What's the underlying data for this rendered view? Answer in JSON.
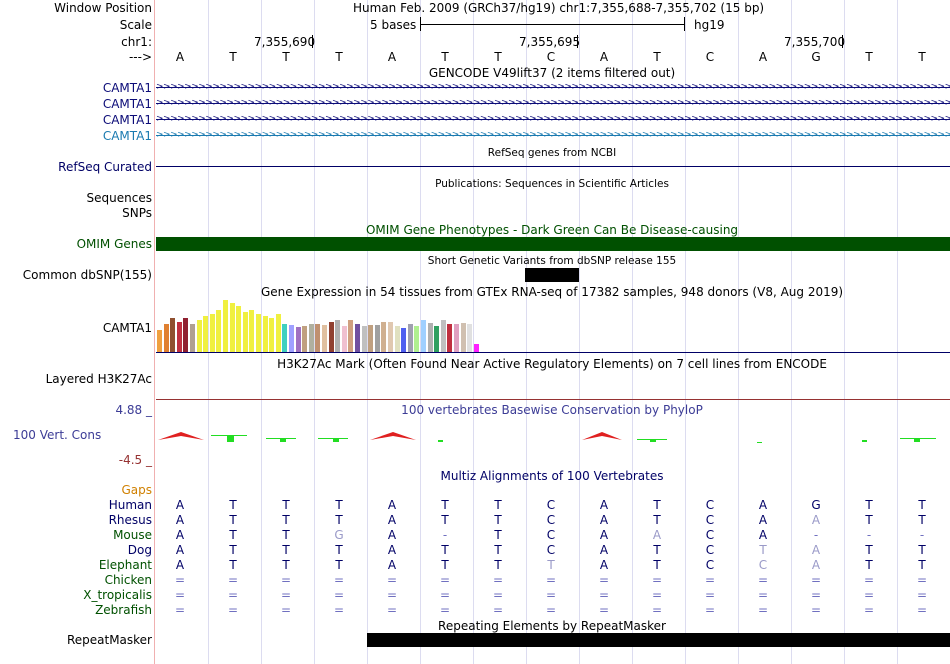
{
  "colors": {
    "navy": "#000066",
    "gene_blue": "#0c0c78",
    "gene_teal": "#1a7ab0",
    "omim_green": "#005000",
    "phylop_blue": "#3c3c96",
    "neg_red": "#963232",
    "red_peak": "#e02020",
    "lime": "#22dd22",
    "gaps_orange": "#d08000",
    "grey": "#7070c0",
    "mismatch": "#9a9ac8"
  },
  "header": {
    "window_label": "Window Position",
    "window_value": "Human Feb. 2009 (GRCh37/hg19)   chr1:7,355,688-7,355,702 (15 bp)",
    "scale_label": "Scale",
    "scale_value": "5 bases",
    "scale_db": "hg19",
    "chr_label": "chr1:",
    "arrow_label": "--->",
    "ticks": [
      "7,355,690",
      "7,355,695",
      "7,355,700"
    ]
  },
  "bases": [
    "A",
    "T",
    "T",
    "T",
    "A",
    "T",
    "T",
    "C",
    "A",
    "T",
    "C",
    "A",
    "G",
    "T",
    "T"
  ],
  "tracks": {
    "gencode_title": "GENCODE V49lift37 (2 items filtered out)",
    "gencode_items": [
      "CAMTA1",
      "CAMTA1",
      "CAMTA1",
      "CAMTA1"
    ],
    "refseq_label": "RefSeq Curated",
    "refseq_title": "RefSeq genes from NCBI",
    "pubs_title": "Publications: Sequences in Scientific Articles",
    "sequences_label": "Sequences",
    "snps_label": "SNPs",
    "omim_title": "OMIM Gene Phenotypes - Dark Green Can Be Disease-causing",
    "omim_label": "OMIM Genes",
    "dbsnp_title": "Short Genetic Variants from dbSNP release 155",
    "dbsnp_label": "Common dbSNP(155)",
    "gtex_title": "Gene Expression in 54 tissues from GTEx RNA-seq of 17382 samples, 948 donors (V8, Aug 2019)",
    "gtex_label": "CAMTA1",
    "h3k_title": "H3K27Ac Mark (Often Found Near Active Regulatory Elements) on 7 cell lines from ENCODE",
    "h3k_label": "Layered H3K27Ac",
    "phylop_max": "4.88 _",
    "phylop_title": "100 vertebrates Basewise Conservation by PhyloP",
    "phylop_label": "100 Vert. Cons",
    "phylop_min": "-4.5 _",
    "multiz_title": "Multiz Alignments of 100 Vertebrates",
    "gaps_label": "Gaps",
    "repeat_title": "Repeating Elements by RepeatMasker",
    "repeat_label": "RepeatMasker"
  },
  "gtex_values": [
    22,
    28,
    34,
    30,
    34,
    28,
    32,
    36,
    38,
    42,
    52,
    49,
    46,
    40,
    42,
    38,
    36,
    34,
    38,
    28,
    27,
    25,
    26,
    28,
    28,
    27,
    30,
    32,
    26,
    32,
    28,
    26,
    27,
    27,
    30,
    30,
    26,
    24,
    28,
    26,
    32,
    29,
    26,
    32,
    28,
    28,
    29,
    28,
    8
  ],
  "gtex_colors": [
    "#f0a040",
    "#e08030",
    "#905030",
    "#c03040",
    "#902030",
    "#b0a090",
    "#f0f040",
    "#f0f040",
    "#f0f040",
    "#f0f040",
    "#f0f040",
    "#f0f040",
    "#f0f040",
    "#f0f040",
    "#f0f040",
    "#f0f040",
    "#f0f040",
    "#f0f040",
    "#f0f040",
    "#40d0c0",
    "#a0a0ff",
    "#a070c0",
    "#c0a080",
    "#b0b0a0",
    "#c09070",
    "#e0c0a0",
    "#904030",
    "#b0b0b0",
    "#f0c0d0",
    "#d0a080",
    "#7050a0",
    "#c0c0c0",
    "#c0a080",
    "#a0a0a0",
    "#d0b090",
    "#e0c8b0",
    "#e0e0c0",
    "#5060f0",
    "#a0a0b0",
    "#b0f090",
    "#a0d0ff",
    "#b0b0b0",
    "#30a060",
    "#c0c0c0",
    "#c03040",
    "#e0a0c0",
    "#d0c0b0",
    "#e0e0e0",
    "#ff20ff"
  ],
  "species": [
    {
      "name": "Human",
      "color": "#000066",
      "seq": "ATTTATTCATCAGTT"
    },
    {
      "name": "Rhesus",
      "color": "#000066",
      "seq": "ATTTATTCATCAATT"
    },
    {
      "name": "Mouse",
      "color": "#005000",
      "seq": "ATTGA-TCAACA---"
    },
    {
      "name": "Dog",
      "color": "#000066",
      "seq": "ATTTATTCATCTATT"
    },
    {
      "name": "Elephant",
      "color": "#005000",
      "seq": "ATTTATTTATCCATT"
    },
    {
      "name": "Chicken",
      "color": "#005000",
      "seq": "==============="
    },
    {
      "name": "X_tropicalis",
      "color": "#005000",
      "seq": "==============="
    },
    {
      "name": "Zebrafish",
      "color": "#005000",
      "seq": "==============="
    }
  ]
}
